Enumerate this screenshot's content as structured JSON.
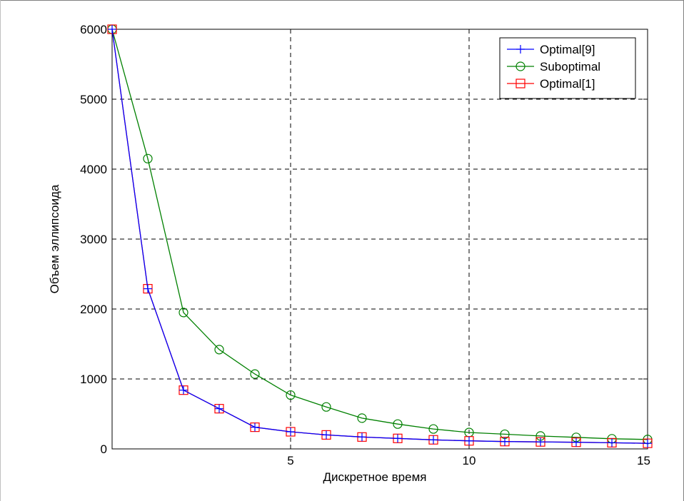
{
  "chart_data": {
    "type": "line",
    "title": "",
    "xlabel": "Дискретное время",
    "ylabel": "Объем эллипсоида",
    "xlim": [
      0,
      15
    ],
    "ylim": [
      0,
      6000
    ],
    "xticks": [
      5,
      10,
      15
    ],
    "yticks": [
      0,
      1000,
      2000,
      3000,
      4000,
      5000,
      6000
    ],
    "grid": true,
    "legend_position": "top-right",
    "x": [
      0,
      1,
      2,
      3,
      4,
      5,
      6,
      7,
      8,
      9,
      10,
      11,
      12,
      13,
      14,
      15
    ],
    "series": [
      {
        "name": "Optimal[9]",
        "color": "#0000ff",
        "marker": "plus",
        "values": [
          6000,
          2290,
          840,
          575,
          310,
          245,
          200,
          170,
          150,
          130,
          115,
          105,
          100,
          95,
          88,
          80
        ]
      },
      {
        "name": "Suboptimal",
        "color": "#008000",
        "marker": "circle",
        "values": [
          6000,
          4150,
          1950,
          1420,
          1070,
          770,
          600,
          440,
          355,
          285,
          235,
          210,
          185,
          165,
          145,
          135
        ]
      },
      {
        "name": "Optimal[1]",
        "color": "#ff0000",
        "marker": "square",
        "values": [
          6000,
          2290,
          840,
          575,
          310,
          245,
          200,
          170,
          150,
          130,
          115,
          105,
          100,
          95,
          88,
          80
        ]
      }
    ]
  }
}
